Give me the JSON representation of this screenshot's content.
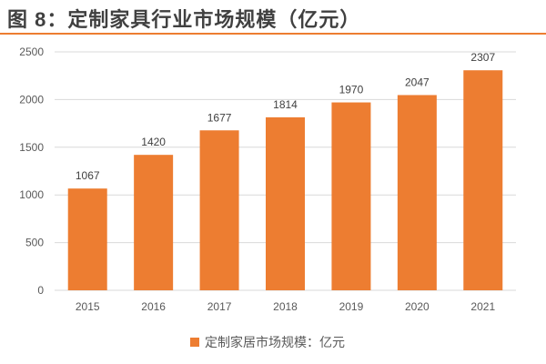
{
  "title": "图 8：定制家具行业市场规模（亿元）",
  "chart_data": {
    "type": "bar",
    "categories": [
      "2015",
      "2016",
      "2017",
      "2018",
      "2019",
      "2020",
      "2021"
    ],
    "series": [
      {
        "name": "定制家居市场规模：亿元",
        "values": [
          1067,
          1420,
          1677,
          1814,
          1970,
          2047,
          2307
        ]
      }
    ],
    "data_labels": [
      "1067",
      "1420",
      "1677",
      "1814",
      "1970",
      "2047",
      "2307"
    ],
    "yticks": [
      "0",
      "500",
      "1000",
      "1500",
      "2000",
      "2500"
    ],
    "ylim": [
      0,
      2500
    ],
    "grid": true,
    "legend": "bottom",
    "color": "#ED7D31"
  }
}
